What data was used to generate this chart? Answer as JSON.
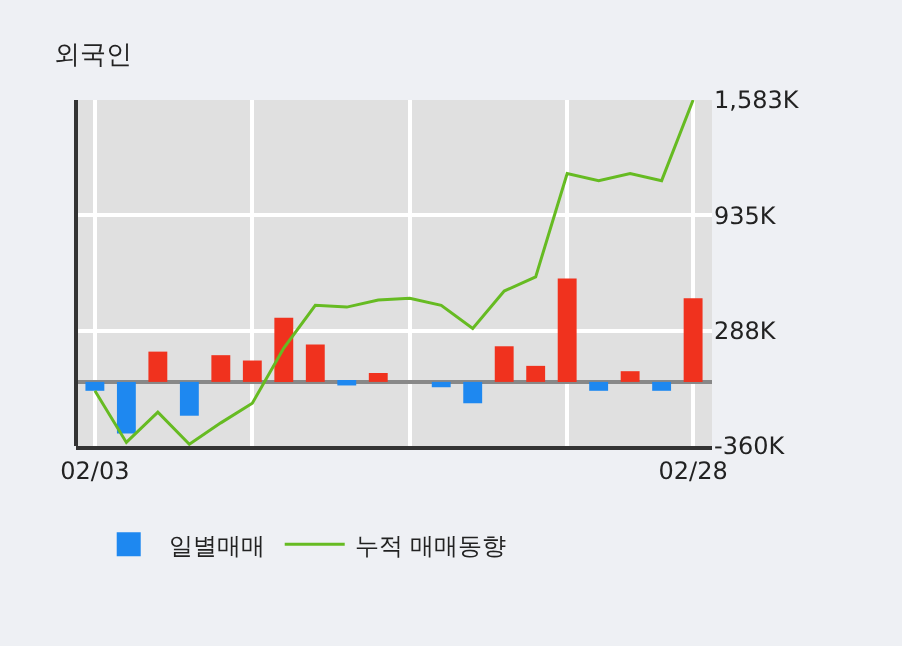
{
  "chart_data": {
    "type": "bar",
    "title": "외국인",
    "categories": [
      "02/03",
      null,
      null,
      null,
      null,
      null,
      null,
      null,
      null,
      null,
      null,
      null,
      null,
      null,
      null,
      null,
      null,
      null,
      null,
      "02/28"
    ],
    "series": [
      {
        "name": "일별매매",
        "colors": [
          "#1e88f0",
          "#1e88f0",
          "#f0321e",
          "#1e88f0",
          "#f0321e",
          "#f0321e",
          "#f0321e",
          "#f0321e",
          "#1e88f0",
          "#f0321e",
          "#f0321e",
          "#1e88f0",
          "#1e88f0",
          "#f0321e",
          "#f0321e",
          "#f0321e",
          "#1e88f0",
          "#f0321e",
          "#1e88f0",
          "#f0321e"
        ],
        "values": [
          -50,
          -290,
          170,
          -190,
          150,
          120,
          360,
          210,
          -20,
          50,
          0,
          -30,
          -120,
          200,
          90,
          580,
          -50,
          60,
          -50,
          470
        ]
      },
      {
        "name": "누적 매매동향",
        "type": "line",
        "color": "#66bb22",
        "values": [
          -50,
          -340,
          -170,
          -350,
          -230,
          -120,
          190,
          430,
          420,
          460,
          470,
          430,
          300,
          510,
          590,
          1170,
          1130,
          1170,
          1130,
          1583
        ]
      }
    ],
    "ylim": [
      -360,
      1583
    ],
    "yticks": [
      {
        "value": -360,
        "label": "-360K"
      },
      {
        "value": 288,
        "label": "288K"
      },
      {
        "value": 935,
        "label": "935K"
      },
      {
        "value": 1583,
        "label": "1,583K"
      }
    ],
    "grid": true,
    "legend": "bottom",
    "marker": "none",
    "line_style": "solid"
  }
}
